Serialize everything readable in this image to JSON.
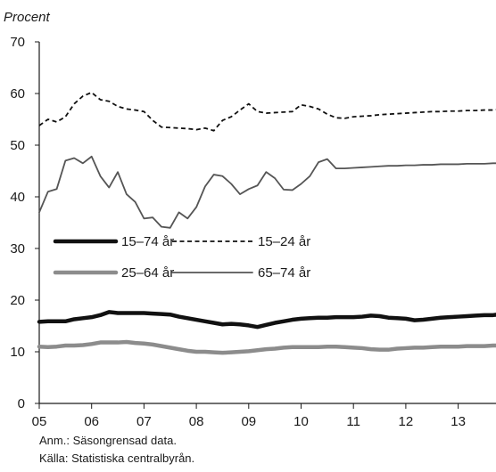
{
  "notes": {
    "anm": "Anm.: Säsongrensad data.",
    "kalla": "Källa: Statistiska centralbyrån."
  },
  "chart_data": {
    "type": "line",
    "ylabel": "Procent",
    "ylim": [
      0,
      70
    ],
    "yticks": [
      "0",
      "10",
      "20",
      "30",
      "40",
      "50",
      "60",
      "70"
    ],
    "xtick_labels": [
      "05",
      "06",
      "07",
      "08",
      "09",
      "10",
      "11",
      "12",
      "13"
    ],
    "xlim": [
      2005,
      2013.75
    ],
    "grid": false,
    "legend_position": "lower-left inside",
    "x": [
      2005.0,
      2005.167,
      2005.333,
      2005.5,
      2005.667,
      2005.833,
      2006.0,
      2006.167,
      2006.333,
      2006.5,
      2006.667,
      2006.833,
      2007.0,
      2007.167,
      2007.333,
      2007.5,
      2007.667,
      2007.833,
      2008.0,
      2008.167,
      2008.333,
      2008.5,
      2008.667,
      2008.833,
      2009.0,
      2009.167,
      2009.333,
      2009.5,
      2009.667,
      2009.833,
      2010.0,
      2010.167,
      2010.333,
      2010.5,
      2010.667,
      2010.833,
      2011.0,
      2011.167,
      2011.333,
      2011.5,
      2011.667,
      2011.833,
      2012.0,
      2012.167,
      2012.333,
      2012.5,
      2012.667,
      2012.833,
      2013.0,
      2013.167,
      2013.333,
      2013.5,
      2013.667,
      2013.75
    ],
    "series": [
      {
        "name": "15–74 år",
        "color": "#111111",
        "style": "solid-thick",
        "values": [
          15.8,
          15.9,
          15.9,
          15.9,
          16.3,
          16.5,
          16.7,
          17.1,
          17.7,
          17.5,
          17.5,
          17.5,
          17.5,
          17.4,
          17.3,
          17.2,
          16.8,
          16.5,
          16.2,
          15.9,
          15.6,
          15.3,
          15.4,
          15.3,
          15.1,
          14.8,
          15.2,
          15.6,
          15.9,
          16.2,
          16.4,
          16.5,
          16.6,
          16.6,
          16.7,
          16.7,
          16.7,
          16.8,
          17.0,
          16.9,
          16.6,
          16.5,
          16.4,
          16.1,
          16.2,
          16.4,
          16.6,
          16.7,
          16.8,
          16.9,
          17.0,
          17.1,
          17.1,
          17.2
        ]
      },
      {
        "name": "15–24 år",
        "color": "#111111",
        "style": "dashed",
        "values": [
          53.8,
          55.0,
          54.5,
          55.5,
          58.0,
          59.5,
          60.2,
          58.8,
          58.5,
          57.5,
          57.0,
          56.8,
          56.5,
          54.8,
          53.5,
          53.4,
          53.3,
          53.2,
          53.0,
          53.3,
          52.8,
          54.8,
          55.5,
          56.8,
          58.0,
          56.5,
          56.2,
          56.3,
          56.4,
          56.5,
          57.8,
          57.5,
          57.0,
          56.0,
          55.3,
          55.2,
          55.5,
          55.6,
          55.7,
          55.9,
          56.0,
          56.1,
          56.2,
          56.3,
          56.4,
          56.5,
          56.5,
          56.6,
          56.6,
          56.7,
          56.7,
          56.8,
          56.8,
          56.9
        ]
      },
      {
        "name": "25–64 år",
        "color": "#8c8c8c",
        "style": "solid-thick",
        "values": [
          11.0,
          10.9,
          11.0,
          11.2,
          11.2,
          11.3,
          11.5,
          11.8,
          11.8,
          11.8,
          11.9,
          11.7,
          11.6,
          11.4,
          11.1,
          10.8,
          10.5,
          10.2,
          10.0,
          10.0,
          9.9,
          9.8,
          9.9,
          10.0,
          10.1,
          10.3,
          10.5,
          10.6,
          10.8,
          10.9,
          10.9,
          10.9,
          10.9,
          11.0,
          11.0,
          10.9,
          10.8,
          10.7,
          10.5,
          10.4,
          10.4,
          10.6,
          10.7,
          10.8,
          10.8,
          10.9,
          11.0,
          11.0,
          11.0,
          11.1,
          11.1,
          11.1,
          11.2,
          11.2
        ]
      },
      {
        "name": "65–74 år",
        "color": "#555555",
        "style": "solid-thin",
        "values": [
          37.0,
          41.0,
          41.5,
          47.0,
          47.5,
          46.5,
          47.8,
          44.0,
          41.8,
          44.8,
          40.5,
          39.0,
          35.8,
          36.0,
          34.2,
          34.0,
          37.0,
          35.8,
          38.0,
          42.0,
          44.3,
          44.0,
          42.5,
          40.5,
          41.5,
          42.2,
          44.8,
          43.6,
          41.4,
          41.3,
          42.5,
          44.0,
          46.7,
          47.3,
          45.5,
          45.5,
          45.6,
          45.7,
          45.8,
          45.9,
          46.0,
          46.0,
          46.1,
          46.1,
          46.2,
          46.2,
          46.3,
          46.3,
          46.3,
          46.4,
          46.4,
          46.4,
          46.5,
          46.5
        ]
      }
    ]
  }
}
